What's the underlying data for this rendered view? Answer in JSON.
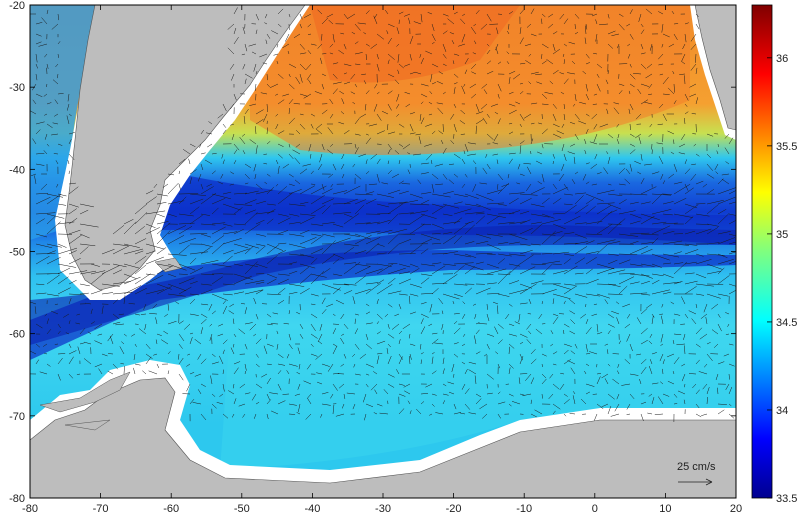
{
  "figure": {
    "type": "ocean-salinity-current-map",
    "x_ticks": [
      "-80",
      "-70",
      "-60",
      "-50",
      "-40",
      "-30",
      "-20",
      "-10",
      "0",
      "10",
      "20"
    ],
    "y_ticks": [
      "-20",
      "-30",
      "-40",
      "-50",
      "-60",
      "-70",
      "-80"
    ],
    "lon_range": [
      -80,
      20
    ],
    "lat_range": [
      -80,
      -20
    ],
    "colorbar": {
      "ticks": [
        "36",
        "35.5",
        "35",
        "34.5",
        "34",
        "33.5"
      ],
      "range": [
        33.5,
        36.3
      ],
      "colormap": "jet"
    },
    "reference_vector": {
      "label": "25 cm/s"
    },
    "colors": {
      "land": "#bdbdbd",
      "ice": "#ffffff",
      "frame": "#000000"
    }
  }
}
